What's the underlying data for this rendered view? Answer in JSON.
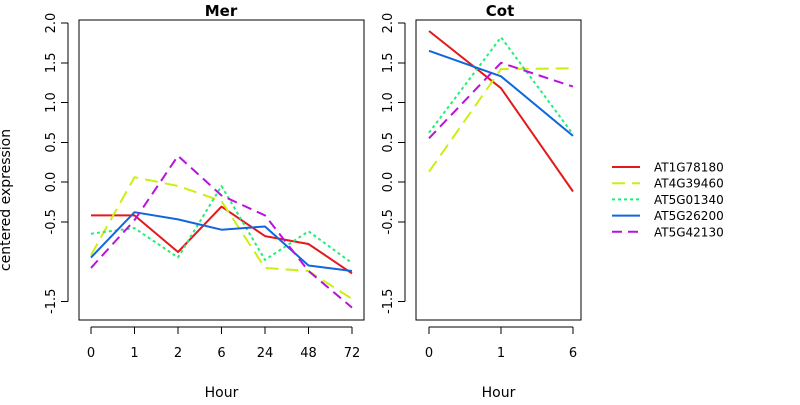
{
  "ylabel": "centered expression",
  "chart_data": [
    {
      "type": "line",
      "title": "Mer",
      "xlabel": "Hour",
      "ylabel": "centered expression",
      "categories": [
        "0",
        "1",
        "2",
        "6",
        "24",
        "48",
        "72"
      ],
      "ylim": [
        -1.7,
        2.0
      ],
      "yticks": [
        "-1.5",
        "-0.5",
        "0.0",
        "0.5",
        "1.0",
        "1.5",
        "2.0"
      ],
      "grid": false,
      "series": [
        {
          "name": "AT1G78180",
          "color": "#e31a1c",
          "dash": "solid",
          "values": [
            -0.42,
            -0.42,
            -0.88,
            -0.31,
            -0.68,
            -0.78,
            -1.15
          ]
        },
        {
          "name": "AT4G39460",
          "color": "#ccee11",
          "dash": "long-dash",
          "values": [
            -0.92,
            0.06,
            -0.05,
            -0.24,
            -1.08,
            -1.12,
            -1.47
          ]
        },
        {
          "name": "AT5G01340",
          "color": "#22ee77",
          "dash": "dotted",
          "values": [
            -0.65,
            -0.58,
            -0.95,
            -0.05,
            -0.98,
            -0.62,
            -1.02
          ]
        },
        {
          "name": "AT5G26200",
          "color": "#1166dd",
          "dash": "solid",
          "values": [
            -0.95,
            -0.38,
            -0.47,
            -0.6,
            -0.56,
            -1.05,
            -1.12
          ]
        },
        {
          "name": "AT5G42130",
          "color": "#bb11dd",
          "dash": "dashed",
          "values": [
            -1.08,
            -0.48,
            0.33,
            -0.17,
            -0.42,
            -1.12,
            -1.58
          ]
        }
      ]
    },
    {
      "type": "line",
      "title": "Cot",
      "xlabel": "Hour",
      "ylabel": "",
      "categories": [
        "0",
        "1",
        "6"
      ],
      "ylim": [
        -1.7,
        2.0
      ],
      "yticks": [
        "-1.5",
        "-0.5",
        "0.0",
        "0.5",
        "1.0",
        "1.5",
        "2.0"
      ],
      "grid": false,
      "series": [
        {
          "name": "AT1G78180",
          "color": "#e31a1c",
          "dash": "solid",
          "values": [
            1.9,
            1.18,
            -0.12
          ]
        },
        {
          "name": "AT4G39460",
          "color": "#ccee11",
          "dash": "long-dash",
          "values": [
            0.13,
            1.42,
            1.43
          ]
        },
        {
          "name": "AT5G01340",
          "color": "#22ee77",
          "dash": "dotted",
          "values": [
            0.62,
            1.82,
            0.6
          ]
        },
        {
          "name": "AT5G26200",
          "color": "#1166dd",
          "dash": "solid",
          "values": [
            1.65,
            1.33,
            0.58
          ]
        },
        {
          "name": "AT5G42130",
          "color": "#bb11dd",
          "dash": "dashed",
          "values": [
            0.55,
            1.5,
            1.2
          ]
        }
      ]
    }
  ],
  "legend": {
    "position": "right",
    "items": [
      {
        "label": "AT1G78180",
        "color": "#e31a1c",
        "dash": "solid"
      },
      {
        "label": "AT4G39460",
        "color": "#ccee11",
        "dash": "long-dash"
      },
      {
        "label": "AT5G01340",
        "color": "#22ee77",
        "dash": "dotted"
      },
      {
        "label": "AT5G26200",
        "color": "#1166dd",
        "dash": "solid"
      },
      {
        "label": "AT5G42130",
        "color": "#bb11dd",
        "dash": "dashed"
      }
    ]
  }
}
